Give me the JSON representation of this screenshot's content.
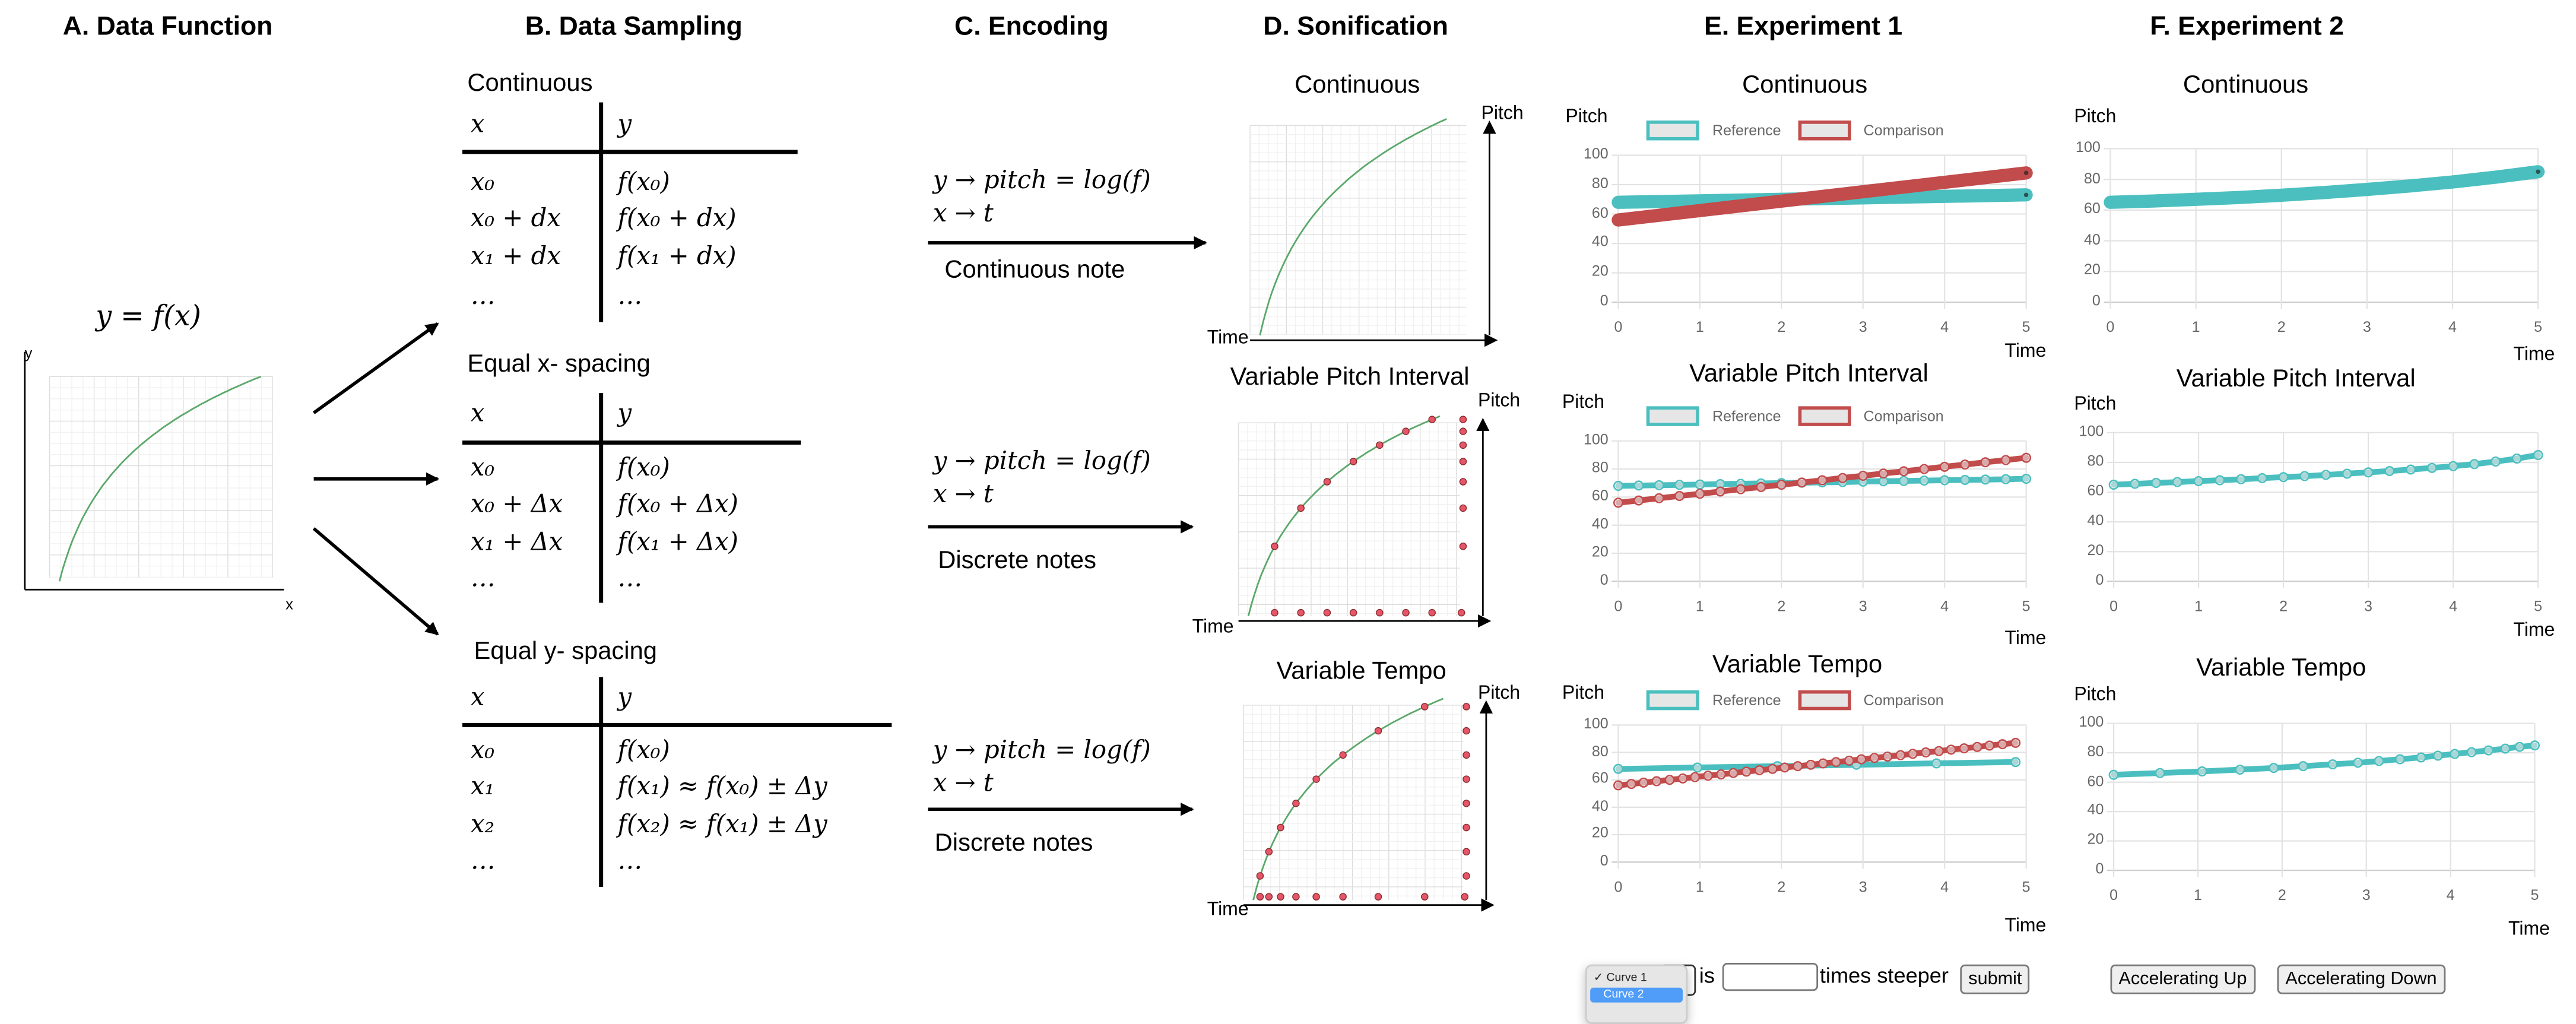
{
  "panels": {
    "a": {
      "title": "A. Data Function",
      "equation": "y = f(x)",
      "y_label": "y",
      "x_label": "x"
    },
    "b": {
      "title": "B. Data Sampling",
      "sections": [
        {
          "label": "Continuous",
          "header": [
            "x",
            "y"
          ],
          "rows": [
            [
              "x₀",
              "f(x₀)"
            ],
            [
              "x₀ + dx",
              "f(x₀ + dx)"
            ],
            [
              "x₁ + dx",
              "f(x₁ + dx)"
            ],
            [
              "…",
              "…"
            ]
          ]
        },
        {
          "label": "Equal x- spacing",
          "header": [
            "x",
            "y"
          ],
          "rows": [
            [
              "x₀",
              "f(x₀)"
            ],
            [
              "x₀ + Δx",
              "f(x₀ + Δx)"
            ],
            [
              "x₁ + Δx",
              "f(x₁ + Δx)"
            ],
            [
              "…",
              "…"
            ]
          ]
        },
        {
          "label": "Equal y- spacing",
          "header": [
            "x",
            "y"
          ],
          "rows": [
            [
              "x₀",
              "f(x₀)"
            ],
            [
              "x₁",
              "f(x₁) ≈ f(x₀) ± Δy"
            ],
            [
              "x₂",
              "f(x₂) ≈ f(x₁) ± Δy"
            ],
            [
              "…",
              "…"
            ]
          ]
        }
      ]
    },
    "c": {
      "title": "C. Encoding",
      "encodings": [
        {
          "map_y": "y → pitch = log(f)",
          "map_x": "x → t",
          "label": "Continuous note"
        },
        {
          "map_y": "y → pitch = log(f)",
          "map_x": "x → t",
          "label": "Discrete notes"
        },
        {
          "map_y": "y → pitch = log(f)",
          "map_x": "x → t",
          "label": "Discrete notes"
        }
      ]
    },
    "d": {
      "title": "D. Sonification",
      "plots": [
        {
          "title": "Continuous",
          "pitch_label": "Pitch",
          "time_label": "Time"
        },
        {
          "title": "Variable Pitch Interval",
          "pitch_label": "Pitch",
          "time_label": "Time"
        },
        {
          "title": "Variable Tempo",
          "pitch_label": "Pitch",
          "time_label": "Time"
        }
      ],
      "line_color": "#5aa86a",
      "dot_color": "#e5566a"
    },
    "e": {
      "title": "E. Experiment 1",
      "legend": {
        "reference": "Reference",
        "comparison": "Comparison"
      },
      "controls": {
        "dropdown_options": [
          "✓ Curve 1",
          "Curve 2"
        ],
        "selected_option": "Curve 2",
        "is_label": "is",
        "input_value": "",
        "steeper_label": "times steeper",
        "submit_label": "submit"
      }
    },
    "f": {
      "title": "F. Experiment 2",
      "controls": {
        "up_label": "Accelerating Up",
        "down_label": "Accelerating Down"
      }
    }
  },
  "colors": {
    "reference": "#4bbfbf",
    "comparison": "#c24b4b",
    "grid": "#e3e3e3",
    "accent_select": "#4f9cf9"
  },
  "chart_data": [
    {
      "id": "e1",
      "type": "line",
      "title": "Continuous",
      "ylabel": "Pitch",
      "xlabel": "Time",
      "xlim": [
        0,
        5
      ],
      "ylim": [
        0,
        100
      ],
      "xticks": [
        0,
        1,
        2,
        3,
        4,
        5
      ],
      "yticks": [
        0,
        20,
        40,
        60,
        80,
        100
      ],
      "grid": true,
      "legend": "top",
      "markers": false,
      "series": [
        {
          "name": "Reference",
          "color": "#4bbfbf",
          "points": [
            [
              0,
              68
            ],
            [
              5,
              73
            ]
          ]
        },
        {
          "name": "Comparison",
          "color": "#c24b4b",
          "points": [
            [
              0,
              56
            ],
            [
              5,
              88
            ]
          ]
        }
      ]
    },
    {
      "id": "e2",
      "type": "line",
      "title": "Variable Pitch Interval",
      "ylabel": "Pitch",
      "xlabel": "Time",
      "xlim": [
        0,
        5
      ],
      "ylim": [
        0,
        100
      ],
      "xticks": [
        0,
        1,
        2,
        3,
        4,
        5
      ],
      "yticks": [
        0,
        20,
        40,
        60,
        80,
        100
      ],
      "grid": true,
      "legend": "top",
      "markers": true,
      "series": [
        {
          "name": "Reference",
          "color": "#4bbfbf",
          "points": [
            [
              0,
              68
            ],
            [
              0.25,
              68.25
            ],
            [
              0.5,
              68.5
            ],
            [
              0.75,
              68.75
            ],
            [
              1,
              69
            ],
            [
              1.25,
              69.25
            ],
            [
              1.5,
              69.5
            ],
            [
              1.75,
              69.75
            ],
            [
              2,
              70
            ],
            [
              2.25,
              70.25
            ],
            [
              2.5,
              70.5
            ],
            [
              2.75,
              70.75
            ],
            [
              3,
              71
            ],
            [
              3.25,
              71.25
            ],
            [
              3.5,
              71.5
            ],
            [
              3.75,
              71.75
            ],
            [
              4,
              72
            ],
            [
              4.25,
              72.25
            ],
            [
              4.5,
              72.5
            ],
            [
              4.75,
              72.75
            ],
            [
              5,
              73
            ]
          ]
        },
        {
          "name": "Comparison",
          "color": "#c24b4b",
          "points": [
            [
              0,
              56
            ],
            [
              0.25,
              57.6
            ],
            [
              0.5,
              59.2
            ],
            [
              0.75,
              60.8
            ],
            [
              1,
              62.4
            ],
            [
              1.25,
              64
            ],
            [
              1.5,
              65.6
            ],
            [
              1.75,
              67.2
            ],
            [
              2,
              68.8
            ],
            [
              2.25,
              70.4
            ],
            [
              2.5,
              72
            ],
            [
              2.75,
              73.6
            ],
            [
              3,
              75.2
            ],
            [
              3.25,
              76.8
            ],
            [
              3.5,
              78.4
            ],
            [
              3.75,
              80
            ],
            [
              4,
              81.6
            ],
            [
              4.25,
              83.2
            ],
            [
              4.5,
              84.8
            ],
            [
              4.75,
              86.4
            ],
            [
              5,
              88
            ]
          ]
        }
      ]
    },
    {
      "id": "e3",
      "type": "line",
      "title": "Variable Tempo",
      "ylabel": "Pitch",
      "xlabel": "Time",
      "xlim": [
        0,
        5
      ],
      "ylim": [
        0,
        100
      ],
      "xticks": [
        0,
        1,
        2,
        3,
        4,
        5
      ],
      "yticks": [
        0,
        20,
        40,
        60,
        80,
        100
      ],
      "grid": true,
      "legend": "top",
      "markers": true,
      "series": [
        {
          "name": "Reference",
          "color": "#4bbfbf",
          "points": [
            [
              0,
              68
            ],
            [
              0.97,
              69
            ],
            [
              1.95,
              70
            ],
            [
              2.92,
              71
            ],
            [
              3.9,
              72
            ],
            [
              4.87,
              73
            ]
          ]
        },
        {
          "name": "Comparison",
          "color": "#c24b4b",
          "points": [
            [
              0,
              56
            ],
            [
              0.16,
              57
            ],
            [
              0.31,
              58
            ],
            [
              0.47,
              59
            ],
            [
              0.63,
              60
            ],
            [
              0.79,
              61
            ],
            [
              0.94,
              62
            ],
            [
              1.1,
              63
            ],
            [
              1.26,
              64
            ],
            [
              1.41,
              65
            ],
            [
              1.57,
              66
            ],
            [
              1.73,
              67
            ],
            [
              1.89,
              68
            ],
            [
              2.04,
              69
            ],
            [
              2.2,
              70
            ],
            [
              2.36,
              71
            ],
            [
              2.51,
              72
            ],
            [
              2.67,
              73
            ],
            [
              2.83,
              74
            ],
            [
              2.98,
              75
            ],
            [
              3.14,
              76
            ],
            [
              3.3,
              77
            ],
            [
              3.46,
              78
            ],
            [
              3.61,
              79
            ],
            [
              3.77,
              80
            ],
            [
              3.93,
              81
            ],
            [
              4.08,
              82
            ],
            [
              4.24,
              83
            ],
            [
              4.4,
              84
            ],
            [
              4.55,
              85
            ],
            [
              4.71,
              86
            ],
            [
              4.87,
              87
            ]
          ]
        }
      ]
    },
    {
      "id": "f1",
      "type": "line",
      "title": "Continuous",
      "ylabel": "Pitch",
      "xlabel": "Time",
      "xlim": [
        0,
        5
      ],
      "ylim": [
        0,
        100
      ],
      "xticks": [
        0,
        1,
        2,
        3,
        4,
        5
      ],
      "yticks": [
        0,
        20,
        40,
        60,
        80,
        100
      ],
      "grid": true,
      "markers": false,
      "series": [
        {
          "color": "#4bbfbf",
          "points": [
            [
              0,
              65
            ],
            [
              0.5,
              65.9
            ],
            [
              1,
              67
            ],
            [
              1.5,
              68.2
            ],
            [
              2,
              69.7
            ],
            [
              2.5,
              71.4
            ],
            [
              3,
              73.4
            ],
            [
              3.5,
              75.7
            ],
            [
              4,
              78.3
            ],
            [
              4.5,
              81.4
            ],
            [
              5,
              85
            ]
          ]
        }
      ]
    },
    {
      "id": "f2",
      "type": "line",
      "title": "Variable Pitch Interval",
      "ylabel": "Pitch",
      "xlabel": "Time",
      "xlim": [
        0,
        5
      ],
      "ylim": [
        0,
        100
      ],
      "xticks": [
        0,
        1,
        2,
        3,
        4,
        5
      ],
      "yticks": [
        0,
        20,
        40,
        60,
        80,
        100
      ],
      "grid": true,
      "markers": true,
      "series": [
        {
          "color": "#4bbfbf",
          "points": [
            [
              0,
              65
            ],
            [
              0.25,
              65.6
            ],
            [
              0.5,
              66.2
            ],
            [
              0.75,
              66.8
            ],
            [
              1,
              67.4
            ],
            [
              1.25,
              68
            ],
            [
              1.5,
              68.7
            ],
            [
              1.75,
              69.4
            ],
            [
              2,
              70.1
            ],
            [
              2.25,
              70.8
            ],
            [
              2.5,
              71.6
            ],
            [
              2.75,
              72.4
            ],
            [
              3,
              73.3
            ],
            [
              3.25,
              74.2
            ],
            [
              3.5,
              75.2
            ],
            [
              3.75,
              76.3
            ],
            [
              4,
              77.5
            ],
            [
              4.25,
              78.9
            ],
            [
              4.5,
              80.6
            ],
            [
              4.75,
              82.6
            ],
            [
              5,
              85
            ]
          ]
        }
      ]
    },
    {
      "id": "f3",
      "type": "line",
      "title": "Variable Tempo",
      "ylabel": "Pitch",
      "xlabel": "Time",
      "xlim": [
        0,
        5
      ],
      "ylim": [
        0,
        100
      ],
      "xticks": [
        0,
        1,
        2,
        3,
        4,
        5
      ],
      "yticks": [
        0,
        20,
        40,
        60,
        80,
        100
      ],
      "grid": true,
      "markers": true,
      "series": [
        {
          "color": "#4bbfbf",
          "points": [
            [
              0,
              65
            ],
            [
              0.55,
              66.2
            ],
            [
              1.05,
              67.3
            ],
            [
              1.5,
              68.5
            ],
            [
              1.9,
              69.7
            ],
            [
              2.25,
              70.9
            ],
            [
              2.6,
              72.1
            ],
            [
              2.9,
              73.2
            ],
            [
              3.15,
              74.4
            ],
            [
              3.4,
              75.6
            ],
            [
              3.65,
              76.8
            ],
            [
              3.85,
              78
            ],
            [
              4.05,
              79.2
            ],
            [
              4.25,
              80.4
            ],
            [
              4.45,
              81.6
            ],
            [
              4.65,
              82.8
            ],
            [
              4.82,
              84
            ],
            [
              5,
              85
            ]
          ]
        }
      ]
    }
  ]
}
